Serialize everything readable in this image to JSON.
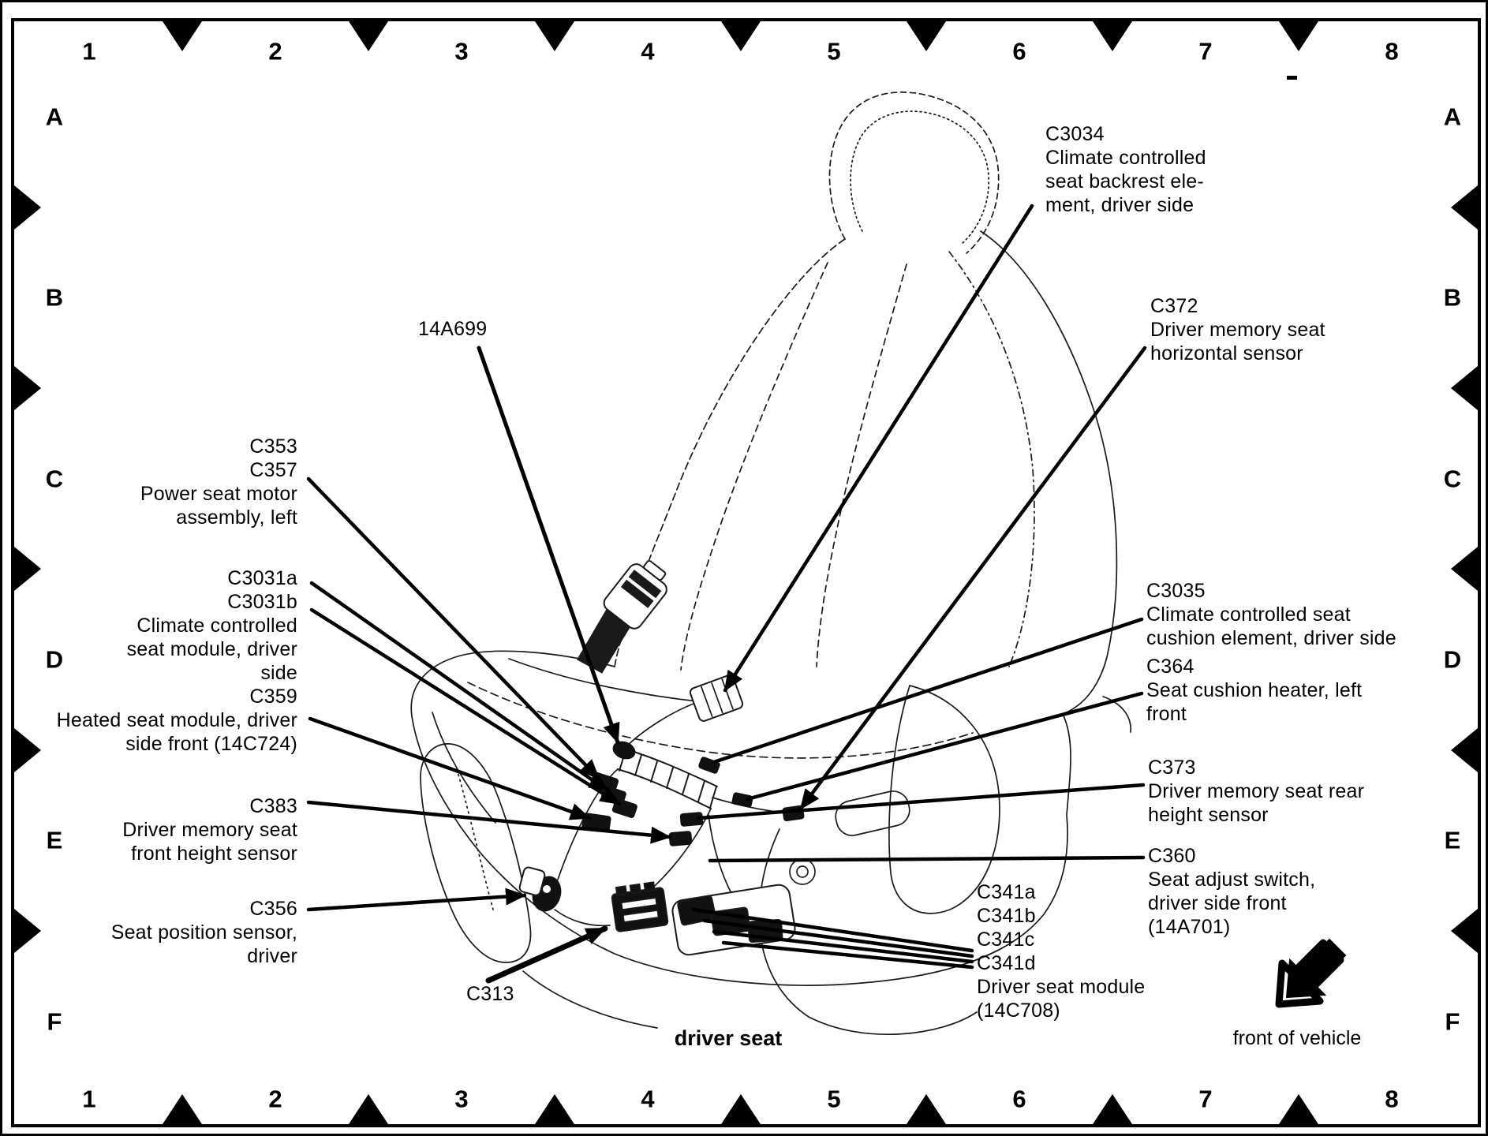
{
  "figure": {
    "caption": "driver seat",
    "orientation_label": "front of vehicle"
  },
  "frame": {
    "top_numbers": [
      "1",
      "2",
      "3",
      "4",
      "5",
      "6",
      "7",
      "8"
    ],
    "bottom_numbers": [
      "1",
      "2",
      "3",
      "4",
      "5",
      "6",
      "7",
      "8"
    ],
    "left_letters": [
      "A",
      "B",
      "C",
      "D",
      "E",
      "F"
    ],
    "right_letters": [
      "A",
      "B",
      "C",
      "D",
      "E",
      "F"
    ]
  },
  "callouts": {
    "c3034": {
      "lines": [
        "C3034",
        "Climate controlled",
        "seat backrest ele-",
        "ment, driver side"
      ]
    },
    "c372": {
      "lines": [
        "C372",
        "Driver memory seat",
        "horizontal sensor"
      ]
    },
    "c3035": {
      "lines": [
        "C3035",
        "Climate controlled seat",
        "cushion element, driver side"
      ]
    },
    "c364": {
      "lines": [
        "C364",
        "Seat cushion heater, left",
        "front"
      ]
    },
    "c373": {
      "lines": [
        "C373",
        "Driver memory seat rear",
        "height sensor"
      ]
    },
    "c360": {
      "lines": [
        "C360",
        "Seat adjust switch,",
        "driver side front",
        "(14A701)"
      ]
    },
    "c341": {
      "lines": [
        "C341a",
        "C341b",
        "C341c",
        "C341d",
        "Driver seat module",
        "(14C708)"
      ]
    },
    "harness_14a699": {
      "lines": [
        "14A699"
      ]
    },
    "c313": {
      "lines": [
        "C313"
      ]
    },
    "c353_c357": {
      "lines": [
        "C353",
        "C357",
        "Power seat motor",
        "assembly, left"
      ]
    },
    "c3031_c359": {
      "lines": [
        "C3031a",
        "C3031b",
        "Climate controlled",
        "seat module, driver",
        "side",
        "C359",
        "Heated seat module, driver",
        "side front (14C724)"
      ]
    },
    "c383": {
      "lines": [
        "C383",
        "Driver memory seat",
        "front height sensor"
      ]
    },
    "c356": {
      "lines": [
        "C356",
        "Seat position sensor,",
        "driver"
      ]
    }
  },
  "colors": {
    "ink": "#000000",
    "paper": "#ffffff",
    "line_art": "#1a1a1a"
  }
}
